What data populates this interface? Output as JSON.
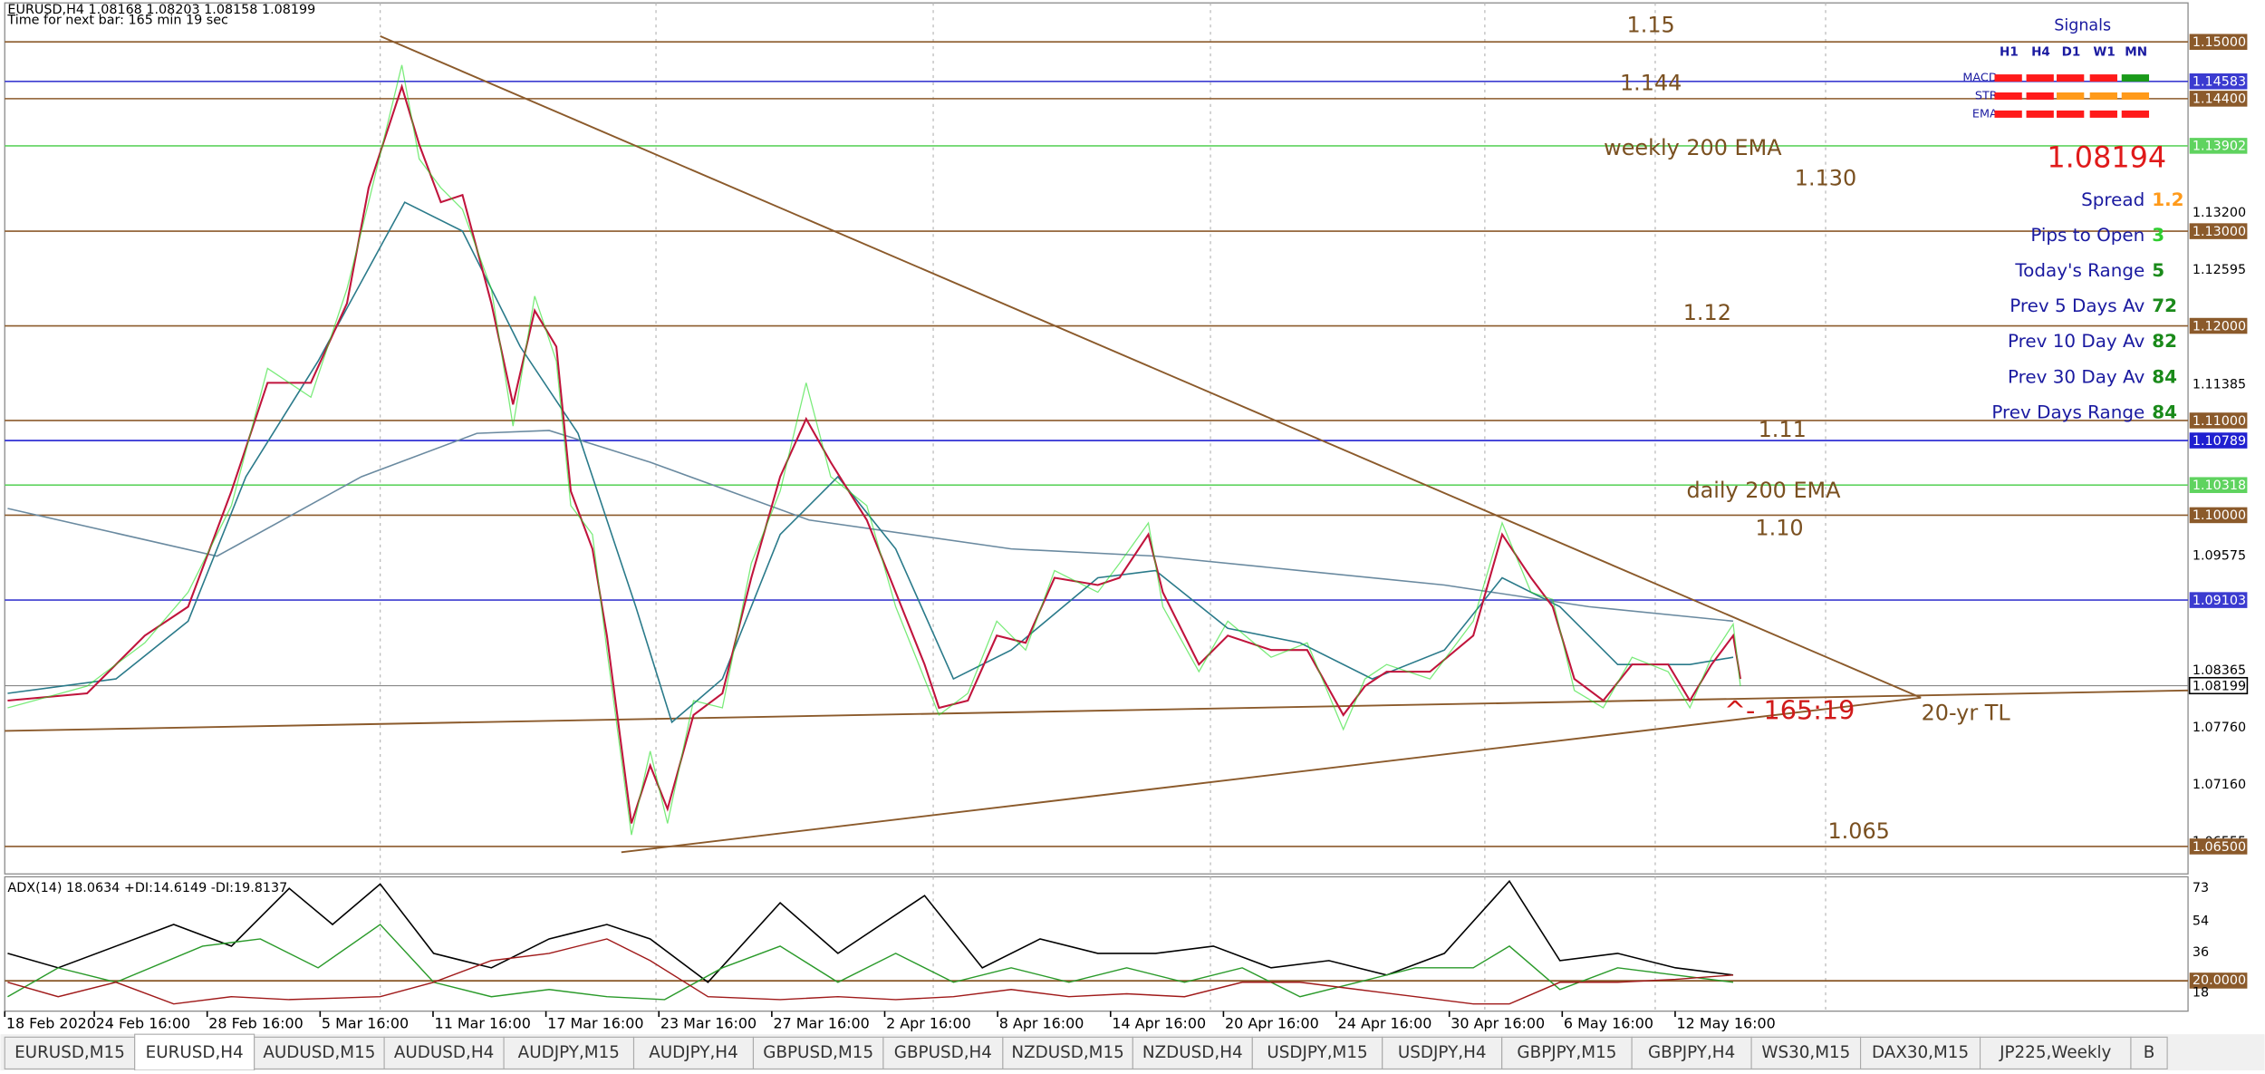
{
  "header": {
    "symbol_line": "EURUSD,H4  1.08168 1.08203 1.08158 1.08199",
    "timer": "Time for next bar: 165 min 19 sec"
  },
  "price_axis": [
    {
      "text": "1.15000",
      "box": "#8b5a2b"
    },
    {
      "text": "1.14583",
      "box": "#3b3bd0"
    },
    {
      "text": "1.14400",
      "box": "#8b5a2b"
    },
    {
      "text": "1.13902",
      "box": "#5fd35f"
    },
    {
      "text": "1.13200"
    },
    {
      "text": "1.13000",
      "box": "#8b5a2b"
    },
    {
      "text": "1.12595"
    },
    {
      "text": "1.12000",
      "box": "#8b5a2b"
    },
    {
      "text": "1.11385"
    },
    {
      "text": "1.11000",
      "box": "#8b5a2b"
    },
    {
      "text": "1.10789",
      "box": "#2020d0"
    },
    {
      "text": "1.10318",
      "box": "#5fd35f"
    },
    {
      "text": "1.10000",
      "box": "#8b5a2b"
    },
    {
      "text": "1.09575"
    },
    {
      "text": "1.09103",
      "box": "#3b3bd0"
    },
    {
      "text": "1.08365"
    },
    {
      "text": "1.08199",
      "box": "#000000"
    },
    {
      "text": "1.07760"
    },
    {
      "text": "1.07160"
    },
    {
      "text": "1.06555"
    },
    {
      "text": "1.06500",
      "box": "#8b5a2b"
    }
  ],
  "annotations": [
    "1.15",
    "1.144",
    "weekly 200 EMA",
    "1.130",
    "1.12",
    "1.11",
    "daily 200 EMA",
    "1.10",
    "^- 165:19",
    "20-yr TL",
    "1.065"
  ],
  "signals": {
    "title": "Signals",
    "columns": [
      "H1",
      "H4",
      "D1",
      "W1",
      "MN"
    ],
    "rows": [
      {
        "label": "MACD",
        "colors": [
          "#ff1a1a",
          "#ff1a1a",
          "#ff1a1a",
          "#ff1a1a",
          "#1a9a1a"
        ]
      },
      {
        "label": "STR",
        "colors": [
          "#ff1a1a",
          "#ff1a1a",
          "#ff9a1a",
          "#ff9a1a",
          "#ff9a1a"
        ]
      },
      {
        "label": "EMA",
        "colors": [
          "#ff1a1a",
          "#ff1a1a",
          "#ff1a1a",
          "#ff1a1a",
          "#ff1a1a"
        ]
      }
    ],
    "price": "1.08194",
    "stats": [
      {
        "label": "Spread",
        "value": "1.2",
        "color": "#ff9a1a"
      },
      {
        "label": "Pips to Open",
        "value": "3",
        "color": "#2ecc2e"
      },
      {
        "label": "Today's Range",
        "value": "5",
        "color": "#1a8a1a"
      },
      {
        "label": "Prev 5 Days Av",
        "value": "72",
        "color": "#1a8a1a"
      },
      {
        "label": "Prev 10 Day Av",
        "value": "82",
        "color": "#1a8a1a"
      },
      {
        "label": "Prev 30 Day Av",
        "value": "84",
        "color": "#1a8a1a"
      },
      {
        "label": "Prev Days Range",
        "value": "84",
        "color": "#1a8a1a"
      }
    ]
  },
  "adx": {
    "header": "ADX(14) 18.0634 +DI:14.6149 -DI:19.8137",
    "axis": [
      "73",
      "54",
      "36",
      "20.0000",
      "18"
    ]
  },
  "time_axis": [
    "18 Feb 2020",
    "24 Feb 16:00",
    "28 Feb 16:00",
    "5 Mar 16:00",
    "11 Mar 16:00",
    "17 Mar 16:00",
    "23 Mar 16:00",
    "27 Mar 16:00",
    "2 Apr 16:00",
    "8 Apr 16:00",
    "14 Apr 16:00",
    "20 Apr 16:00",
    "24 Apr 16:00",
    "30 Apr 16:00",
    "6 May 16:00",
    "12 May 16:00"
  ],
  "tabs": {
    "items": [
      "EURUSD,M15",
      "EURUSD,H4",
      "AUDUSD,M15",
      "AUDUSD,H4",
      "AUDJPY,M15",
      "AUDJPY,H4",
      "GBPUSD,M15",
      "GBPUSD,H4",
      "NZDUSD,M15",
      "NZDUSD,H4",
      "USDJPY,M15",
      "USDJPY,H4",
      "GBPJPY,M15",
      "GBPJPY,H4",
      "WS30,M15",
      "DAX30,M15",
      "JP225,Weekly",
      "B"
    ],
    "active": 1
  }
}
